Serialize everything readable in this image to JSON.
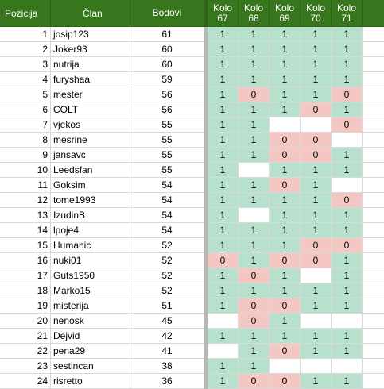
{
  "headers": {
    "pozicija": "Pozicija",
    "clan": "Član",
    "bodovi": "Bodovi",
    "kolo": [
      "Kolo\n67",
      "Kolo\n68",
      "Kolo\n69",
      "Kolo\n70",
      "Kolo\n71"
    ]
  },
  "rows": [
    {
      "pos": "1",
      "name": "josip123",
      "pts": "61",
      "k": [
        {
          "v": "1",
          "c": "g"
        },
        {
          "v": "1",
          "c": "g"
        },
        {
          "v": "1",
          "c": "g"
        },
        {
          "v": "1",
          "c": "g"
        },
        {
          "v": "1",
          "c": "g"
        }
      ]
    },
    {
      "pos": "2",
      "name": "Joker93",
      "pts": "60",
      "k": [
        {
          "v": "1",
          "c": "g"
        },
        {
          "v": "1",
          "c": "g"
        },
        {
          "v": "1",
          "c": "g"
        },
        {
          "v": "1",
          "c": "g"
        },
        {
          "v": "1",
          "c": "g"
        }
      ]
    },
    {
      "pos": "3",
      "name": "nutrija",
      "pts": "60",
      "k": [
        {
          "v": "1",
          "c": "g"
        },
        {
          "v": "1",
          "c": "g"
        },
        {
          "v": "1",
          "c": "g"
        },
        {
          "v": "1",
          "c": "g"
        },
        {
          "v": "1",
          "c": "g"
        }
      ]
    },
    {
      "pos": "4",
      "name": "furyshaa",
      "pts": "59",
      "k": [
        {
          "v": "1",
          "c": "g"
        },
        {
          "v": "1",
          "c": "g"
        },
        {
          "v": "1",
          "c": "g"
        },
        {
          "v": "1",
          "c": "g"
        },
        {
          "v": "1",
          "c": "g"
        }
      ]
    },
    {
      "pos": "5",
      "name": "mester",
      "pts": "56",
      "k": [
        {
          "v": "1",
          "c": "g"
        },
        {
          "v": "0",
          "c": "r"
        },
        {
          "v": "1",
          "c": "g"
        },
        {
          "v": "1",
          "c": "g"
        },
        {
          "v": "0",
          "c": "r"
        }
      ]
    },
    {
      "pos": "6",
      "name": "COLT",
      "pts": "56",
      "k": [
        {
          "v": "1",
          "c": "g"
        },
        {
          "v": "1",
          "c": "g"
        },
        {
          "v": "1",
          "c": "g"
        },
        {
          "v": "0",
          "c": "r"
        },
        {
          "v": "1",
          "c": "g"
        }
      ]
    },
    {
      "pos": "7",
      "name": "vjekos",
      "pts": "55",
      "k": [
        {
          "v": "1",
          "c": "g"
        },
        {
          "v": "1",
          "c": "g"
        },
        {
          "v": "",
          "c": "w"
        },
        {
          "v": "",
          "c": "w"
        },
        {
          "v": "0",
          "c": "r"
        }
      ]
    },
    {
      "pos": "8",
      "name": "mesrine",
      "pts": "55",
      "k": [
        {
          "v": "1",
          "c": "g"
        },
        {
          "v": "1",
          "c": "g"
        },
        {
          "v": "0",
          "c": "r"
        },
        {
          "v": "0",
          "c": "r"
        },
        {
          "v": "",
          "c": "w"
        }
      ]
    },
    {
      "pos": "9",
      "name": "jansavc",
      "pts": "55",
      "k": [
        {
          "v": "1",
          "c": "g"
        },
        {
          "v": "1",
          "c": "g"
        },
        {
          "v": "0",
          "c": "r"
        },
        {
          "v": "0",
          "c": "r"
        },
        {
          "v": "1",
          "c": "g"
        }
      ]
    },
    {
      "pos": "10",
      "name": "Leedsfan",
      "pts": "55",
      "k": [
        {
          "v": "1",
          "c": "g"
        },
        {
          "v": "",
          "c": "w"
        },
        {
          "v": "1",
          "c": "g"
        },
        {
          "v": "1",
          "c": "g"
        },
        {
          "v": "1",
          "c": "g"
        }
      ]
    },
    {
      "pos": "11",
      "name": "Goksim",
      "pts": "54",
      "k": [
        {
          "v": "1",
          "c": "g"
        },
        {
          "v": "1",
          "c": "g"
        },
        {
          "v": "0",
          "c": "r"
        },
        {
          "v": "1",
          "c": "g"
        },
        {
          "v": "",
          "c": "w"
        }
      ]
    },
    {
      "pos": "12",
      "name": "tome1993",
      "pts": "54",
      "k": [
        {
          "v": "1",
          "c": "g"
        },
        {
          "v": "1",
          "c": "g"
        },
        {
          "v": "1",
          "c": "g"
        },
        {
          "v": "1",
          "c": "g"
        },
        {
          "v": "0",
          "c": "r"
        }
      ]
    },
    {
      "pos": "13",
      "name": "IzudinB",
      "pts": "54",
      "k": [
        {
          "v": "1",
          "c": "g"
        },
        {
          "v": "",
          "c": "w"
        },
        {
          "v": "1",
          "c": "g"
        },
        {
          "v": "1",
          "c": "g"
        },
        {
          "v": "1",
          "c": "g"
        }
      ]
    },
    {
      "pos": "14",
      "name": "lpoje4",
      "pts": "54",
      "k": [
        {
          "v": "1",
          "c": "g"
        },
        {
          "v": "1",
          "c": "g"
        },
        {
          "v": "1",
          "c": "g"
        },
        {
          "v": "1",
          "c": "g"
        },
        {
          "v": "1",
          "c": "g"
        }
      ]
    },
    {
      "pos": "15",
      "name": "Humanic",
      "pts": "52",
      "k": [
        {
          "v": "1",
          "c": "g"
        },
        {
          "v": "1",
          "c": "g"
        },
        {
          "v": "1",
          "c": "g"
        },
        {
          "v": "0",
          "c": "r"
        },
        {
          "v": "0",
          "c": "r"
        }
      ]
    },
    {
      "pos": "16",
      "name": "nuki01",
      "pts": "52",
      "k": [
        {
          "v": "0",
          "c": "r"
        },
        {
          "v": "1",
          "c": "g"
        },
        {
          "v": "0",
          "c": "r"
        },
        {
          "v": "0",
          "c": "r"
        },
        {
          "v": "1",
          "c": "g"
        }
      ]
    },
    {
      "pos": "17",
      "name": "Guts1950",
      "pts": "52",
      "k": [
        {
          "v": "1",
          "c": "g"
        },
        {
          "v": "0",
          "c": "r"
        },
        {
          "v": "1",
          "c": "g"
        },
        {
          "v": "",
          "c": "w"
        },
        {
          "v": "1",
          "c": "g"
        }
      ]
    },
    {
      "pos": "18",
      "name": "Marko15",
      "pts": "52",
      "k": [
        {
          "v": "1",
          "c": "g"
        },
        {
          "v": "1",
          "c": "g"
        },
        {
          "v": "1",
          "c": "g"
        },
        {
          "v": "1",
          "c": "g"
        },
        {
          "v": "1",
          "c": "g"
        }
      ]
    },
    {
      "pos": "19",
      "name": "misterija",
      "pts": "51",
      "k": [
        {
          "v": "1",
          "c": "g"
        },
        {
          "v": "0",
          "c": "r"
        },
        {
          "v": "0",
          "c": "r"
        },
        {
          "v": "1",
          "c": "g"
        },
        {
          "v": "1",
          "c": "g"
        }
      ]
    },
    {
      "pos": "20",
      "name": "nenosk",
      "pts": "45",
      "k": [
        {
          "v": "",
          "c": "w"
        },
        {
          "v": "0",
          "c": "r"
        },
        {
          "v": "1",
          "c": "g"
        },
        {
          "v": "",
          "c": "w"
        },
        {
          "v": "",
          "c": "w"
        }
      ]
    },
    {
      "pos": "21",
      "name": "Dejvid",
      "pts": "42",
      "k": [
        {
          "v": "1",
          "c": "g"
        },
        {
          "v": "1",
          "c": "g"
        },
        {
          "v": "1",
          "c": "g"
        },
        {
          "v": "1",
          "c": "g"
        },
        {
          "v": "1",
          "c": "g"
        }
      ]
    },
    {
      "pos": "22",
      "name": "pena29",
      "pts": "41",
      "k": [
        {
          "v": "",
          "c": "w"
        },
        {
          "v": "1",
          "c": "g"
        },
        {
          "v": "0",
          "c": "r"
        },
        {
          "v": "1",
          "c": "g"
        },
        {
          "v": "1",
          "c": "g"
        }
      ]
    },
    {
      "pos": "23",
      "name": "sestincan",
      "pts": "38",
      "k": [
        {
          "v": "1",
          "c": "g"
        },
        {
          "v": "1",
          "c": "g"
        },
        {
          "v": "",
          "c": "w"
        },
        {
          "v": "",
          "c": "w"
        },
        {
          "v": "",
          "c": "w"
        }
      ]
    },
    {
      "pos": "24",
      "name": "risretto",
      "pts": "36",
      "k": [
        {
          "v": "1",
          "c": "g"
        },
        {
          "v": "0",
          "c": "r"
        },
        {
          "v": "0",
          "c": "r"
        },
        {
          "v": "1",
          "c": "g"
        },
        {
          "v": "1",
          "c": "g"
        }
      ]
    }
  ],
  "colors": {
    "header_bg": "#38761d",
    "cell_one": "#b7e1cd",
    "cell_zero": "#f4c7c3"
  }
}
